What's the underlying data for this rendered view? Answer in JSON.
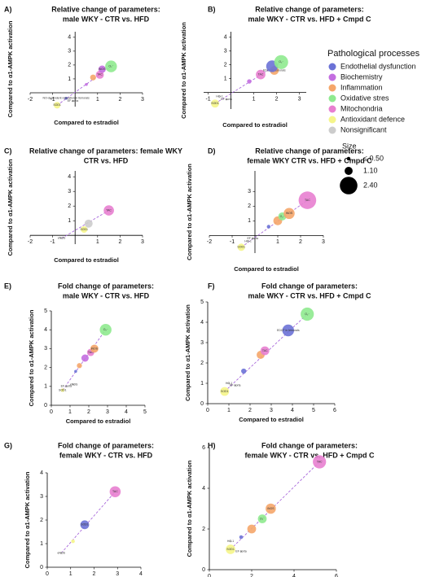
{
  "legend": {
    "title": "Pathological processes",
    "items": [
      {
        "name": "Endothelial dysfunction",
        "color": "#6b72d6"
      },
      {
        "name": "Biochemistry",
        "color": "#c36ee0"
      },
      {
        "name": "Inflammation",
        "color": "#f5a66a"
      },
      {
        "name": "Oxidative stres",
        "color": "#8fea8f"
      },
      {
        "name": "Mitochondria",
        "color": "#e87fd0"
      },
      {
        "name": "Antioxidant defence",
        "color": "#f5f58a"
      },
      {
        "name": "Nonsignificant",
        "color": "#cccccc"
      }
    ],
    "size_title": "Size",
    "sizes": [
      {
        "value": 0.5,
        "label": "≤ 0.50"
      },
      {
        "value": 1.1,
        "label": "1.10"
      },
      {
        "value": 2.4,
        "label": "2.40"
      }
    ]
  },
  "chart_data": [
    {
      "type": "scatter",
      "panel": "A)",
      "title": [
        "Relative change of parameters:",
        "male WKY - CTR vs.  HFD"
      ],
      "axes": "crossed",
      "xlabel": "Compared to estradiol",
      "ylabel": "Compared to α1-AMPK activation",
      "xlim": [
        -2,
        3
      ],
      "ylim": [
        -1,
        4.4
      ],
      "xticks": [
        -2,
        -1,
        1,
        2,
        3
      ],
      "yticks": [
        1,
        2,
        3,
        4
      ],
      "points": [
        {
          "x": -0.8,
          "y": -0.9,
          "size": 0.9,
          "color": "#f5f58a",
          "label": "SOD1"
        },
        {
          "x": -0.4,
          "y": -0.4,
          "size": 0.4,
          "color": "#6b72d6",
          "label": "NO-dependent relaxation in femorals"
        },
        {
          "x": -0.1,
          "y": -0.6,
          "size": 0.3,
          "color": "#cccccc",
          "label": "EF aorta"
        },
        {
          "x": 0.5,
          "y": 0.6,
          "size": 0.4,
          "color": "#c36ee0"
        },
        {
          "x": 0.8,
          "y": 1.1,
          "size": 0.8,
          "color": "#f5a66a"
        },
        {
          "x": 1.1,
          "y": 1.3,
          "size": 1.1,
          "color": "#e87fd0",
          "label": "TAC"
        },
        {
          "x": 1.2,
          "y": 1.7,
          "size": 1.0,
          "color": "#c36ee0",
          "label": "iNOS"
        },
        {
          "x": 1.6,
          "y": 1.9,
          "size": 1.6,
          "color": "#8fea8f",
          "label": "O₂⁻"
        }
      ]
    },
    {
      "type": "scatter",
      "panel": "B)",
      "title": [
        "Relative change of parameters:",
        "male WKY - CTR vs. HFD +  Cmpd C"
      ],
      "axes": "crossed",
      "xlabel": "Compared to estradiol",
      "ylabel": "Compared to α1-AMPK activation",
      "xlim": [
        -1.2,
        3.3
      ],
      "ylim": [
        -1.2,
        4.4
      ],
      "xticks": [
        -1,
        1,
        2,
        3
      ],
      "yticks": [
        1,
        2,
        3,
        4
      ],
      "points": [
        {
          "x": -0.7,
          "y": -0.8,
          "size": 1.1,
          "color": "#f5f58a",
          "label": "SOD1"
        },
        {
          "x": -0.5,
          "y": -0.3,
          "size": 0.3,
          "color": "#cccccc",
          "label": "HO-1"
        },
        {
          "x": -0.2,
          "y": -0.5,
          "size": 0.3,
          "color": "#cccccc",
          "label": "EF aorta"
        },
        {
          "x": 0.8,
          "y": 0.8,
          "size": 0.6,
          "color": "#c36ee0"
        },
        {
          "x": 1.3,
          "y": 1.3,
          "size": 1.3,
          "color": "#e87fd0",
          "label": "TAC"
        },
        {
          "x": 1.9,
          "y": 1.6,
          "size": 1.2,
          "color": "#f5a66a",
          "label": "EDCF in femorals"
        },
        {
          "x": 1.8,
          "y": 1.9,
          "size": 1.6,
          "color": "#6b72d6"
        },
        {
          "x": 2.2,
          "y": 2.2,
          "size": 1.9,
          "color": "#8fea8f",
          "label": "O₂⁻"
        }
      ]
    },
    {
      "type": "scatter",
      "panel": "C)",
      "title": [
        "Relative change of parameters: female WKY",
        "CTR vs.  HFD"
      ],
      "axes": "crossed",
      "xlabel": "Compared to estradiol",
      "ylabel": "Compared to α1-AMPK activation",
      "xlim": [
        -2,
        3
      ],
      "ylim": [
        -0.6,
        4.4
      ],
      "xticks": [
        -2,
        -1,
        1,
        2,
        3
      ],
      "yticks": [
        1,
        2,
        3,
        4
      ],
      "points": [
        {
          "x": -0.6,
          "y": -0.2,
          "size": 0.3,
          "color": "#cccccc",
          "label": "eNOS"
        },
        {
          "x": 0.4,
          "y": 0.4,
          "size": 0.9,
          "color": "#f5f58a",
          "label": "SOD1"
        },
        {
          "x": 0.6,
          "y": 0.8,
          "size": 1.1,
          "color": "#cccccc"
        },
        {
          "x": 1.5,
          "y": 1.7,
          "size": 1.4,
          "color": "#e87fd0",
          "label": "TAC"
        }
      ]
    },
    {
      "type": "scatter",
      "panel": "D)",
      "title": [
        "Relative change of parameters:",
        "female WKY CTR vs.  HFD + Cmpd C"
      ],
      "axes": "crossed",
      "xlabel": "Compared to estradiol",
      "ylabel": "Compared to α1-AMPK activation",
      "xlim": [
        -2,
        3
      ],
      "ylim": [
        -1.2,
        4.4
      ],
      "xticks": [
        -2,
        -1,
        1,
        2,
        3
      ],
      "yticks": [
        1,
        2,
        3
      ],
      "points": [
        {
          "x": -0.6,
          "y": -0.8,
          "size": 1.0,
          "color": "#f5f58a",
          "label": "SOD1"
        },
        {
          "x": -0.3,
          "y": -0.4,
          "size": 0.3,
          "color": "#cccccc",
          "label": "HO-1"
        },
        {
          "x": -0.1,
          "y": -0.2,
          "size": 0.3,
          "color": "#cccccc",
          "label": "EF aorta"
        },
        {
          "x": 0.6,
          "y": 0.6,
          "size": 0.5,
          "color": "#6b72d6"
        },
        {
          "x": 1.0,
          "y": 1.0,
          "size": 1.2,
          "color": "#f5a66a"
        },
        {
          "x": 1.2,
          "y": 1.3,
          "size": 1.1,
          "color": "#8fea8f",
          "label": "O₂⁻"
        },
        {
          "x": 1.5,
          "y": 1.5,
          "size": 1.5,
          "color": "#f5a66a",
          "label": "iNOS"
        },
        {
          "x": 2.3,
          "y": 2.4,
          "size": 2.4,
          "color": "#e87fd0",
          "label": "TAC"
        }
      ]
    },
    {
      "type": "scatter",
      "panel": "E)",
      "title": [
        "Fold change of parameters:",
        "male WKY - CTR vs.  HFD"
      ],
      "axes": "box",
      "xlabel": "Compared to estradiol",
      "ylabel": "Compared to α1-AMPK activation",
      "xlim": [
        0,
        5
      ],
      "ylim": [
        0,
        5
      ],
      "xticks": [
        0,
        1,
        2,
        3,
        4,
        5
      ],
      "yticks": [
        0,
        1,
        2,
        3,
        4,
        5
      ],
      "points": [
        {
          "x": 0.6,
          "y": 0.8,
          "size": 0.5,
          "color": "#f5f58a",
          "label": "SOD1"
        },
        {
          "x": 0.8,
          "y": 1.0,
          "size": 0.3,
          "color": "#cccccc",
          "label": "EF aorta"
        },
        {
          "x": 1.2,
          "y": 1.1,
          "size": 0.3,
          "color": "#cccccc",
          "label": "eNOS"
        },
        {
          "x": 1.3,
          "y": 1.8,
          "size": 0.4,
          "color": "#6b72d6"
        },
        {
          "x": 1.5,
          "y": 2.1,
          "size": 0.7,
          "color": "#f5a66a"
        },
        {
          "x": 1.8,
          "y": 2.5,
          "size": 1.0,
          "color": "#c36ee0"
        },
        {
          "x": 2.1,
          "y": 2.8,
          "size": 1.0,
          "color": "#e87fd0",
          "label": "TAC"
        },
        {
          "x": 2.3,
          "y": 3.0,
          "size": 1.1,
          "color": "#f5a66a",
          "label": "iNOS"
        },
        {
          "x": 2.9,
          "y": 4.0,
          "size": 1.6,
          "color": "#8fea8f",
          "label": "O₂⁻"
        }
      ]
    },
    {
      "type": "scatter",
      "panel": "F)",
      "title": [
        "Fold change of parameters:",
        "male WKY - CTR vs. HFD +  Cmpd C"
      ],
      "axes": "box",
      "xlabel": "Compared to estradiol",
      "ylabel": "Compared to α1-AMPK activation",
      "xlim": [
        0,
        6
      ],
      "ylim": [
        0,
        5
      ],
      "xticks": [
        0,
        1,
        2,
        3,
        4,
        5,
        6
      ],
      "yticks": [
        0,
        1,
        2,
        3,
        4,
        5
      ],
      "points": [
        {
          "x": 0.8,
          "y": 0.6,
          "size": 1.2,
          "color": "#f5f58a",
          "label": "SOD1"
        },
        {
          "x": 1.0,
          "y": 1.0,
          "size": 0.3,
          "color": "#cccccc",
          "label": "HO-1"
        },
        {
          "x": 1.3,
          "y": 0.9,
          "size": 0.3,
          "color": "#cccccc",
          "label": "EF aorta"
        },
        {
          "x": 1.7,
          "y": 1.6,
          "size": 0.7,
          "color": "#6b72d6"
        },
        {
          "x": 2.5,
          "y": 2.4,
          "size": 1.1,
          "color": "#f5a66a"
        },
        {
          "x": 2.7,
          "y": 2.6,
          "size": 1.2,
          "color": "#e87fd0",
          "label": "TAC"
        },
        {
          "x": 3.8,
          "y": 3.6,
          "size": 1.6,
          "color": "#6b72d6",
          "label": "EDCF in femorals"
        },
        {
          "x": 4.7,
          "y": 4.4,
          "size": 1.8,
          "color": "#8fea8f",
          "label": "O₂⁻"
        }
      ]
    },
    {
      "type": "scatter",
      "panel": "G)",
      "title": [
        "Fold change of parameters:",
        "female WKY - CTR vs. HFD"
      ],
      "axes": "box",
      "xlabel": "Compared to estradiol",
      "ylabel": "Compared to α1-AMPK activation",
      "xlim": [
        0,
        4
      ],
      "ylim": [
        0,
        4
      ],
      "xticks": [
        0,
        1,
        2,
        3,
        4
      ],
      "yticks": [
        0,
        1,
        2,
        3,
        4
      ],
      "points": [
        {
          "x": 0.6,
          "y": 0.6,
          "size": 0.3,
          "color": "#cccccc",
          "label": "eNOS"
        },
        {
          "x": 1.1,
          "y": 1.1,
          "size": 0.5,
          "color": "#f5f58a"
        },
        {
          "x": 1.6,
          "y": 1.8,
          "size": 1.2,
          "color": "#6b72d6",
          "label": "SOD1"
        },
        {
          "x": 2.9,
          "y": 3.2,
          "size": 1.5,
          "color": "#e87fd0",
          "label": "TAC"
        }
      ]
    },
    {
      "type": "scatter",
      "panel": "H)",
      "title": [
        "Fold change of parameters:",
        "female WKY - CTR vs. HFD + Cmpd C"
      ],
      "axes": "box",
      "xlabel": "Compared to estradiol",
      "ylabel": "Compared to α1-AMPK activation",
      "xlim": [
        0,
        6
      ],
      "ylim": [
        0,
        6
      ],
      "xticks": [
        0,
        2,
        4,
        6
      ],
      "yticks": [
        0,
        2,
        4,
        6
      ],
      "points": [
        {
          "x": 1.0,
          "y": 1.0,
          "size": 1.3,
          "color": "#f5f58a",
          "label": "SOD1"
        },
        {
          "x": 1.0,
          "y": 1.4,
          "size": 0.3,
          "color": "#cccccc",
          "label": "HO-1"
        },
        {
          "x": 1.5,
          "y": 0.9,
          "size": 0.3,
          "color": "#cccccc",
          "label": "EF aorta"
        },
        {
          "x": 1.5,
          "y": 1.6,
          "size": 0.5,
          "color": "#6b72d6"
        },
        {
          "x": 2.0,
          "y": 2.0,
          "size": 1.2,
          "color": "#f5a66a"
        },
        {
          "x": 2.5,
          "y": 2.5,
          "size": 1.2,
          "color": "#8fea8f",
          "label": "O₂⁻"
        },
        {
          "x": 2.9,
          "y": 3.0,
          "size": 1.4,
          "color": "#f5a66a",
          "label": "iNOS"
        },
        {
          "x": 5.2,
          "y": 5.3,
          "size": 1.8,
          "color": "#e87fd0",
          "label": "TAC"
        }
      ]
    }
  ]
}
